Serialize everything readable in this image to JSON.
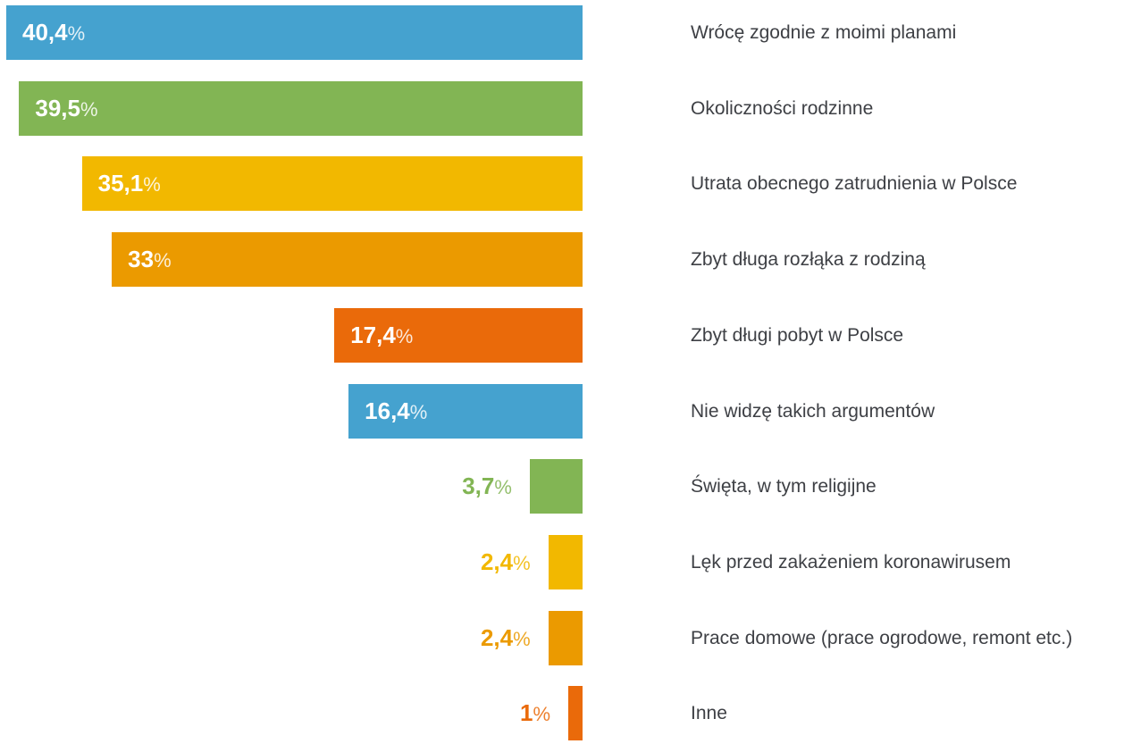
{
  "chart_data": {
    "type": "bar",
    "orientation": "horizontal",
    "value_unit": "%",
    "xlim": [
      0,
      40.4
    ],
    "grid": false,
    "categories": [
      "Wrócę zgodnie z moimi planami",
      "Okoliczności rodzinne",
      "Utrata obecnego zatrudnienia w Polsce",
      "Zbyt długa rozłąka z rodziną",
      "Zbyt długi pobyt w Polsce",
      "Nie widzę takich argumentów",
      "Święta, w tym religijne",
      "Lęk przed zakażeniem koronawirusem",
      "Prace domowe (prace ogrodowe, remont etc.)",
      "Inne"
    ],
    "values": [
      40.4,
      39.5,
      35.1,
      33,
      17.4,
      16.4,
      3.7,
      2.4,
      2.4,
      1
    ],
    "value_labels": [
      "40,4",
      "39,5",
      "35,1",
      "33",
      "17,4",
      "16,4",
      "3,7",
      "2,4",
      "2,4",
      "1"
    ],
    "colors": [
      "#45a2cf",
      "#82b554",
      "#f2b800",
      "#eb9a00",
      "#ea6a0a",
      "#45a2cf",
      "#82b554",
      "#f2b800",
      "#eb9a00",
      "#ea6a0a"
    ]
  }
}
